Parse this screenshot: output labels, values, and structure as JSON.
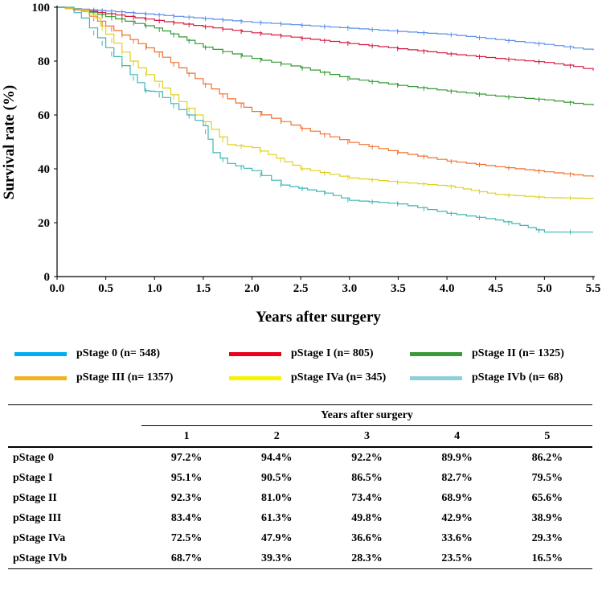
{
  "chart_data": {
    "type": "line",
    "subtype": "kaplan-meier",
    "xlabel": "Years after surgery",
    "ylabel": "Survival rate (%)",
    "xlim": [
      0,
      5.5
    ],
    "ylim": [
      0,
      100
    ],
    "x_ticks": [
      "0.0",
      "0.5",
      "1.0",
      "1.5",
      "2.0",
      "2.5",
      "3.0",
      "3.5",
      "4.0",
      "4.5",
      "5.0",
      "5.5"
    ],
    "y_ticks": [
      "0",
      "20",
      "40",
      "60",
      "80",
      "100"
    ],
    "series": [
      {
        "name": "pStage 0",
        "legend": "pStage 0 (n= 548)",
        "color": "#5b8fe8",
        "points": [
          [
            0,
            100
          ],
          [
            0.25,
            99.3
          ],
          [
            0.5,
            98.6
          ],
          [
            1,
            97.2
          ],
          [
            1.5,
            95.8
          ],
          [
            2,
            94.4
          ],
          [
            2.5,
            93.3
          ],
          [
            3,
            92.2
          ],
          [
            3.5,
            91
          ],
          [
            4,
            89.9
          ],
          [
            4.5,
            88
          ],
          [
            5,
            86.2
          ],
          [
            5.5,
            84
          ]
        ]
      },
      {
        "name": "pStage I",
        "legend": "pStage I (n= 805)",
        "color": "#d7193f",
        "points": [
          [
            0,
            100
          ],
          [
            0.25,
            99
          ],
          [
            0.5,
            97.6
          ],
          [
            1,
            95.1
          ],
          [
            1.5,
            92.8
          ],
          [
            2,
            90.5
          ],
          [
            2.5,
            88.5
          ],
          [
            3,
            86.5
          ],
          [
            3.5,
            84.6
          ],
          [
            4,
            82.7
          ],
          [
            4.5,
            81
          ],
          [
            5,
            79.5
          ],
          [
            5.3,
            78
          ],
          [
            5.5,
            76.5
          ]
        ]
      },
      {
        "name": "pStage II",
        "legend": "pStage II (n= 1325)",
        "color": "#339933",
        "points": [
          [
            0,
            100
          ],
          [
            0.25,
            99
          ],
          [
            0.5,
            96.5
          ],
          [
            1,
            92.3
          ],
          [
            1.25,
            89
          ],
          [
            1.5,
            85.2
          ],
          [
            2,
            81
          ],
          [
            2.5,
            77.5
          ],
          [
            3,
            73.4
          ],
          [
            3.5,
            71
          ],
          [
            4,
            68.9
          ],
          [
            4.5,
            67
          ],
          [
            5,
            65.6
          ],
          [
            5.5,
            63.5
          ]
        ]
      },
      {
        "name": "pStage III",
        "legend": "pStage III (n= 1357)",
        "color": "#f07030",
        "points": [
          [
            0,
            100
          ],
          [
            0.25,
            98.5
          ],
          [
            0.5,
            93
          ],
          [
            0.75,
            88
          ],
          [
            1,
            83.4
          ],
          [
            1.25,
            77.5
          ],
          [
            1.5,
            71.5
          ],
          [
            1.75,
            66
          ],
          [
            2,
            61.3
          ],
          [
            2.5,
            55
          ],
          [
            3,
            49.8
          ],
          [
            3.5,
            46
          ],
          [
            4,
            42.9
          ],
          [
            4.5,
            40.8
          ],
          [
            5,
            38.9
          ],
          [
            5.5,
            37
          ]
        ]
      },
      {
        "name": "pStage IVa",
        "legend": "pStage IVa (n= 345)",
        "color": "#e0d020",
        "points": [
          [
            0,
            100
          ],
          [
            0.25,
            99
          ],
          [
            0.4,
            96
          ],
          [
            0.5,
            90
          ],
          [
            0.75,
            80
          ],
          [
            1,
            72.5
          ],
          [
            1.25,
            65
          ],
          [
            1.5,
            57.5
          ],
          [
            1.75,
            49
          ],
          [
            2,
            47.9
          ],
          [
            2.25,
            44
          ],
          [
            2.5,
            40
          ],
          [
            3,
            36.6
          ],
          [
            3.5,
            35
          ],
          [
            4,
            33.6
          ],
          [
            4.25,
            32
          ],
          [
            4.5,
            30.5
          ],
          [
            5,
            29.3
          ],
          [
            5.5,
            29
          ]
        ]
      },
      {
        "name": "pStage IVb",
        "legend": "pStage IVb (n= 68)",
        "color": "#3fb6b4",
        "points": [
          [
            0,
            100
          ],
          [
            0.1,
            100
          ],
          [
            0.25,
            96
          ],
          [
            0.5,
            85
          ],
          [
            0.75,
            75
          ],
          [
            0.9,
            69
          ],
          [
            1,
            68.7
          ],
          [
            1.25,
            62
          ],
          [
            1.5,
            56
          ],
          [
            1.6,
            46
          ],
          [
            1.75,
            42
          ],
          [
            2,
            39.3
          ],
          [
            2.3,
            34
          ],
          [
            2.75,
            31
          ],
          [
            3,
            28.3
          ],
          [
            3.5,
            27
          ],
          [
            4,
            23.5
          ],
          [
            4.5,
            21
          ],
          [
            4.75,
            19
          ],
          [
            5,
            16.5
          ],
          [
            5.5,
            16.5
          ]
        ]
      }
    ]
  },
  "legend_items": [
    {
      "label": "pStage 0 (n= 548)",
      "color": "#00aeef"
    },
    {
      "label": "pStage I (n= 805)",
      "color": "#e8001c"
    },
    {
      "label": "pStage II (n= 1325)",
      "color": "#3a9a3a"
    },
    {
      "label": "pStage III (n= 1357)",
      "color": "#f2b31d"
    },
    {
      "label": "pStage IVa (n= 345)",
      "color": "#f5f500"
    },
    {
      "label": "pStage IVb (n= 68)",
      "color": "#8fcfd9"
    }
  ],
  "table": {
    "group_header": "Years after surgery",
    "columns": [
      "1",
      "2",
      "3",
      "4",
      "5"
    ],
    "rows": [
      {
        "name": "pStage 0",
        "values": [
          "97.2%",
          "94.4%",
          "92.2%",
          "89.9%",
          "86.2%"
        ]
      },
      {
        "name": "pStage I",
        "values": [
          "95.1%",
          "90.5%",
          "86.5%",
          "82.7%",
          "79.5%"
        ]
      },
      {
        "name": "pStage II",
        "values": [
          "92.3%",
          "81.0%",
          "73.4%",
          "68.9%",
          "65.6%"
        ]
      },
      {
        "name": "pStage III",
        "values": [
          "83.4%",
          "61.3%",
          "49.8%",
          "42.9%",
          "38.9%"
        ]
      },
      {
        "name": "pStage IVa",
        "values": [
          "72.5%",
          "47.9%",
          "36.6%",
          "33.6%",
          "29.3%"
        ]
      },
      {
        "name": "pStage IVb",
        "values": [
          "68.7%",
          "39.3%",
          "28.3%",
          "23.5%",
          "16.5%"
        ]
      }
    ]
  }
}
